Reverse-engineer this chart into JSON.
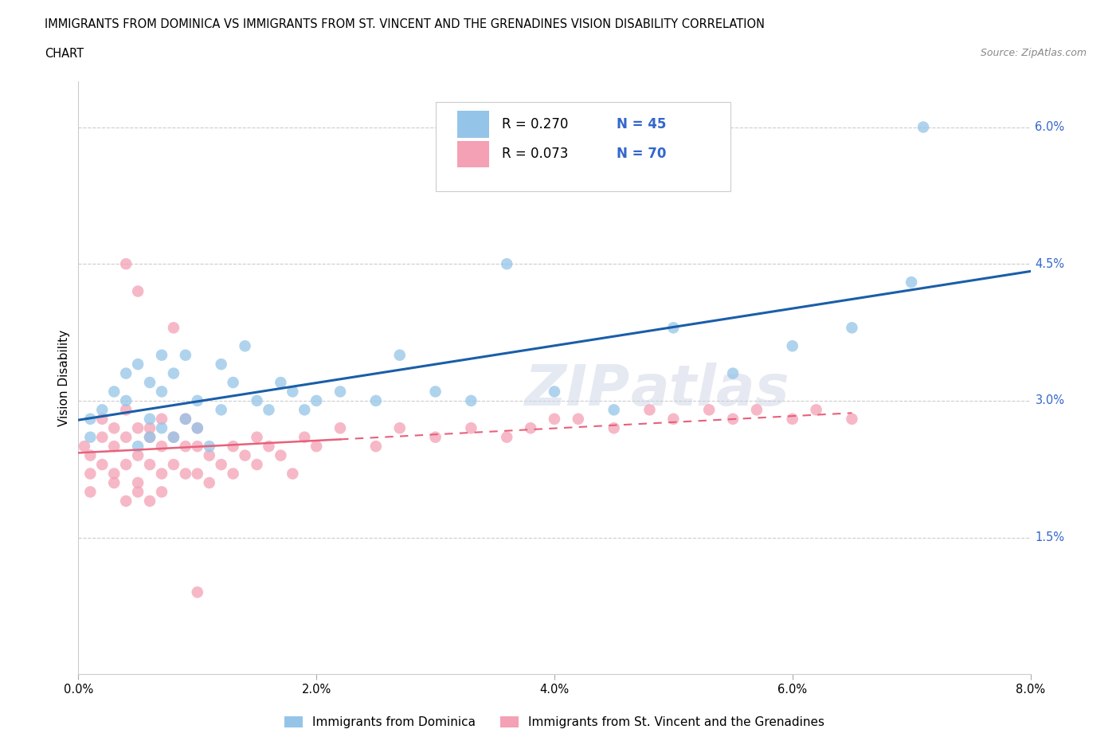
{
  "title_line1": "IMMIGRANTS FROM DOMINICA VS IMMIGRANTS FROM ST. VINCENT AND THE GRENADINES VISION DISABILITY CORRELATION",
  "title_line2": "CHART",
  "source": "Source: ZipAtlas.com",
  "ylabel": "Vision Disability",
  "xlim": [
    0.0,
    0.08
  ],
  "ylim": [
    0.0,
    0.065
  ],
  "xticks": [
    0.0,
    0.02,
    0.04,
    0.06,
    0.08
  ],
  "xtick_labels": [
    "0.0%",
    "2.0%",
    "4.0%",
    "6.0%",
    "8.0%"
  ],
  "ytick_positions": [
    0.015,
    0.03,
    0.045,
    0.06
  ],
  "ytick_labels": [
    "1.5%",
    "3.0%",
    "4.5%",
    "6.0%"
  ],
  "R_dominica": 0.27,
  "N_dominica": 45,
  "R_stvincent": 0.073,
  "N_stvincent": 70,
  "color_dominica": "#94C5E8",
  "color_stvincent": "#F4A0B5",
  "line_color_dominica": "#1A5EA8",
  "line_color_stvincent": "#E8607A",
  "legend_label_dominica": "Immigrants from Dominica",
  "legend_label_stvincent": "Immigrants from St. Vincent and the Grenadines",
  "dominica_x": [
    0.001,
    0.001,
    0.002,
    0.003,
    0.004,
    0.004,
    0.005,
    0.005,
    0.006,
    0.006,
    0.006,
    0.007,
    0.007,
    0.007,
    0.008,
    0.008,
    0.009,
    0.009,
    0.01,
    0.01,
    0.011,
    0.012,
    0.012,
    0.013,
    0.014,
    0.015,
    0.016,
    0.017,
    0.018,
    0.019,
    0.02,
    0.022,
    0.025,
    0.027,
    0.03,
    0.033,
    0.036,
    0.04,
    0.045,
    0.05,
    0.055,
    0.06,
    0.065,
    0.07,
    0.071
  ],
  "dominica_y": [
    0.028,
    0.026,
    0.029,
    0.031,
    0.033,
    0.03,
    0.025,
    0.034,
    0.026,
    0.028,
    0.032,
    0.027,
    0.031,
    0.035,
    0.026,
    0.033,
    0.028,
    0.035,
    0.027,
    0.03,
    0.025,
    0.029,
    0.034,
    0.032,
    0.036,
    0.03,
    0.029,
    0.032,
    0.031,
    0.029,
    0.03,
    0.031,
    0.03,
    0.035,
    0.031,
    0.03,
    0.045,
    0.031,
    0.029,
    0.038,
    0.033,
    0.036,
    0.038,
    0.043,
    0.06
  ],
  "stvincent_x": [
    0.0005,
    0.001,
    0.001,
    0.001,
    0.002,
    0.002,
    0.002,
    0.003,
    0.003,
    0.003,
    0.003,
    0.004,
    0.004,
    0.004,
    0.004,
    0.005,
    0.005,
    0.005,
    0.005,
    0.006,
    0.006,
    0.006,
    0.006,
    0.007,
    0.007,
    0.007,
    0.007,
    0.008,
    0.008,
    0.009,
    0.009,
    0.009,
    0.01,
    0.01,
    0.01,
    0.011,
    0.011,
    0.012,
    0.013,
    0.013,
    0.014,
    0.015,
    0.015,
    0.016,
    0.017,
    0.018,
    0.019,
    0.02,
    0.022,
    0.025,
    0.027,
    0.03,
    0.033,
    0.036,
    0.038,
    0.04,
    0.042,
    0.045,
    0.048,
    0.05,
    0.053,
    0.055,
    0.057,
    0.06,
    0.062,
    0.065,
    0.004,
    0.005,
    0.008,
    0.01
  ],
  "stvincent_y": [
    0.025,
    0.022,
    0.024,
    0.02,
    0.028,
    0.023,
    0.026,
    0.021,
    0.022,
    0.025,
    0.027,
    0.019,
    0.023,
    0.026,
    0.029,
    0.021,
    0.024,
    0.027,
    0.02,
    0.023,
    0.026,
    0.027,
    0.019,
    0.022,
    0.025,
    0.028,
    0.02,
    0.023,
    0.026,
    0.022,
    0.025,
    0.028,
    0.022,
    0.025,
    0.027,
    0.021,
    0.024,
    0.023,
    0.022,
    0.025,
    0.024,
    0.023,
    0.026,
    0.025,
    0.024,
    0.022,
    0.026,
    0.025,
    0.027,
    0.025,
    0.027,
    0.026,
    0.027,
    0.026,
    0.027,
    0.028,
    0.028,
    0.027,
    0.029,
    0.028,
    0.029,
    0.028,
    0.029,
    0.028,
    0.029,
    0.028,
    0.045,
    0.042,
    0.038,
    0.009
  ]
}
